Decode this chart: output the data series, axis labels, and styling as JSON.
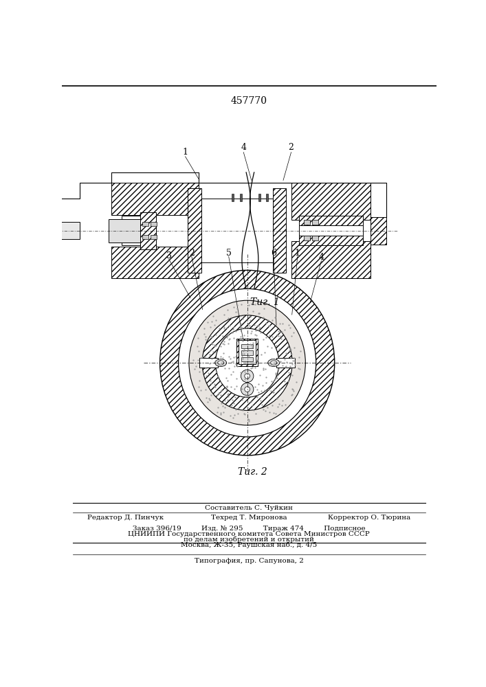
{
  "patent_number": "457770",
  "fig1_caption": "Τиг. 1",
  "fig2_caption": "Τиг. 2",
  "footer_line1": "Составитель С. Чуйкин",
  "footer_line2_col1": "Редактор Д. Пинчук",
  "footer_line2_col2": "Техред Т. Миронова",
  "footer_line2_col3": "Корректор О. Тюрина",
  "footer_line3": "Заказ 396/19         Изд. № 295         Тираж 474         Подписное",
  "footer_line4": "ЦНИИПИ Государственного комитета Совета Министров СССР",
  "footer_line5": "по делам изобретений и открытий",
  "footer_line6": "Москва, Ж-35, Раушская наб., д. 4/5",
  "footer_line7": "Типография, пр. Сапунова, 2",
  "bg_color": "#ffffff"
}
